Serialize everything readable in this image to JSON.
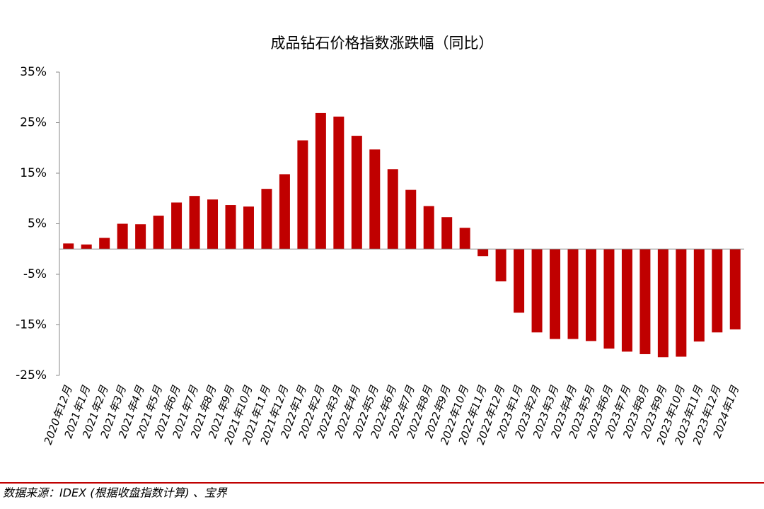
{
  "chart_data": {
    "type": "bar",
    "title": "成品钻石价格指数涨跌幅（同比）",
    "categories": [
      "2020年12月",
      "2021年1月",
      "2021年2月",
      "2021年3月",
      "2021年4月",
      "2021年5月",
      "2021年6月",
      "2021年7月",
      "2021年8月",
      "2021年9月",
      "2021年10月",
      "2021年11月",
      "2021年12月",
      "2022年1月",
      "2022年2月",
      "2022年3月",
      "2022年4月",
      "2022年5月",
      "2022年6月",
      "2022年7月",
      "2022年8月",
      "2022年9月",
      "2022年10月",
      "2022年11月",
      "2022年12月",
      "2023年1月",
      "2023年2月",
      "2023年3月",
      "2023年4月",
      "2023年5月",
      "2023年6月",
      "2023年7月",
      "2023年8月",
      "2023年9月",
      "2023年10月",
      "2023年11月",
      "2023年12月",
      "2024年1月"
    ],
    "values": [
      1.1,
      0.9,
      2.2,
      5.0,
      4.9,
      6.6,
      9.2,
      10.5,
      9.8,
      8.7,
      8.4,
      11.9,
      14.8,
      21.5,
      26.9,
      26.2,
      22.4,
      19.7,
      15.8,
      11.7,
      8.5,
      6.3,
      4.2,
      -1.4,
      -6.4,
      -12.6,
      -16.5,
      -17.8,
      -17.8,
      -18.2,
      -19.7,
      -20.3,
      -20.8,
      -21.4,
      -21.3,
      -18.3,
      -16.5,
      -15.9
    ],
    "color": "#c00000",
    "ylim": [
      -25,
      35
    ],
    "yticks": [
      {
        "value": -25,
        "label": "-25%"
      },
      {
        "value": -15,
        "label": "-15%"
      },
      {
        "value": -5,
        "label": "-5%"
      },
      {
        "value": 5,
        "label": "5%"
      },
      {
        "value": 15,
        "label": "15%"
      },
      {
        "value": 25,
        "label": "25%"
      },
      {
        "value": 35,
        "label": "35%"
      }
    ],
    "source": "数据来源：IDEX (根据收盘指数计算) 、宝界"
  }
}
